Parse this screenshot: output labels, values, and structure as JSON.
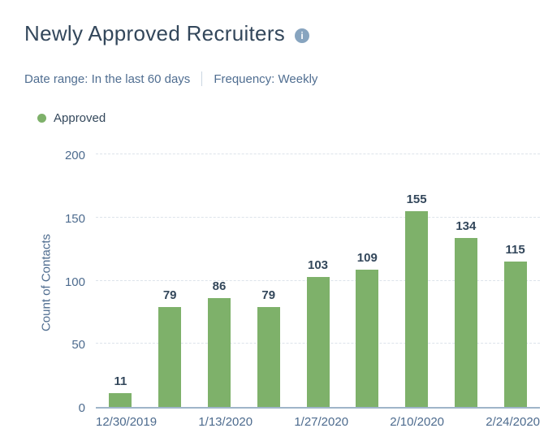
{
  "header": {
    "title": "Newly Approved Recruiters",
    "info_icon_glyph": "i"
  },
  "filters": {
    "date_range_label": "Date range: ",
    "date_range_value": "In the last 60 days",
    "frequency_label": "Frequency: ",
    "frequency_value": "Weekly"
  },
  "legend": {
    "items": [
      {
        "label": "Approved",
        "color": "#7eb16a"
      }
    ]
  },
  "chart_data": {
    "type": "bar",
    "title": "Newly Approved Recruiters",
    "series_name": "Approved",
    "categories": [
      "12/30/2019",
      "",
      "1/13/2020",
      "",
      "1/27/2020",
      "",
      "2/10/2020",
      "",
      "2/24/2020"
    ],
    "values": [
      11,
      79,
      86,
      79,
      103,
      109,
      155,
      134,
      115
    ],
    "xlabel": "",
    "ylabel": "Count of Contacts",
    "ylim": [
      0,
      200
    ],
    "y_ticks": [
      0,
      50,
      100,
      150,
      200
    ],
    "grid": "horizontal-dashed",
    "legend_position": "top-left",
    "bar_color": "#7eb16a",
    "value_label_color": "#33475b",
    "axis_label_color": "#4d6b8e"
  },
  "colors": {
    "background": "#ffffff",
    "title_text": "#33475b",
    "filter_text": "#506e91",
    "bar_green": "#7eb16a",
    "axis_line": "#9fb5c9",
    "gridline": "#dde3ea",
    "info_icon_bg": "#87a4bf"
  }
}
